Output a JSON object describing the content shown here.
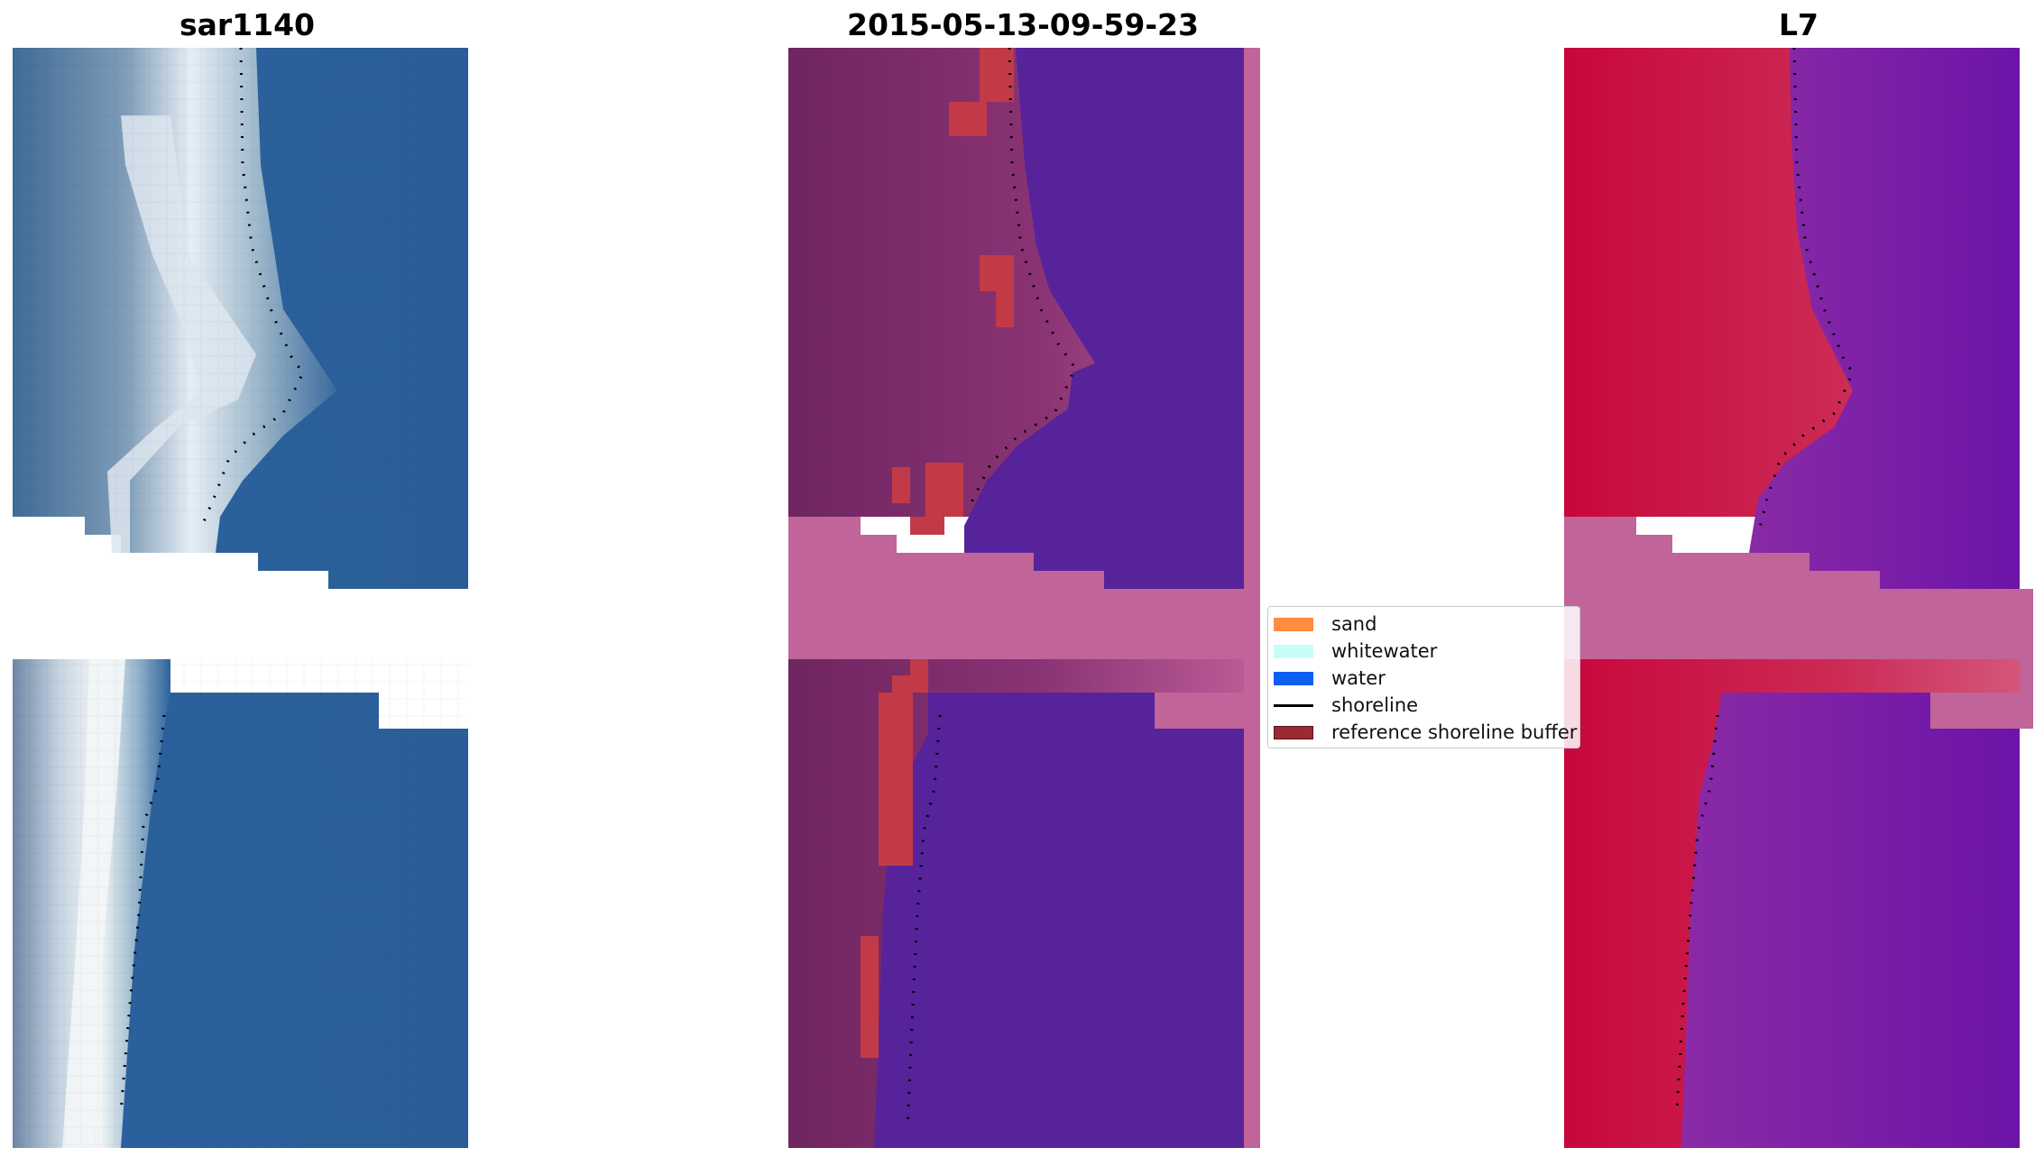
{
  "panels": [
    {
      "title": "sar1140"
    },
    {
      "title": "2015-05-13-09-59-23"
    },
    {
      "title": "L7"
    }
  ],
  "legend": {
    "items": [
      {
        "label": "sand",
        "color": "#ff8c40",
        "kind": "patch"
      },
      {
        "label": "whitewater",
        "color": "#c8fcf8",
        "kind": "patch"
      },
      {
        "label": "water",
        "color": "#0a5ff0",
        "kind": "patch"
      },
      {
        "label": "shoreline",
        "color": "#000000",
        "kind": "line"
      },
      {
        "label": "reference shoreline buffer",
        "color": "#9a2a34",
        "kind": "patch"
      }
    ]
  },
  "colors": {
    "sea_blue": "#2a5f9c",
    "land_overlay": "#7a2a64",
    "water_class": "#56239a",
    "buffer_pink": "#c0649a",
    "buffer_red": "#c23a48",
    "mndwi_land": "#c81a48",
    "mndwi_water": "#7a1ca8"
  }
}
